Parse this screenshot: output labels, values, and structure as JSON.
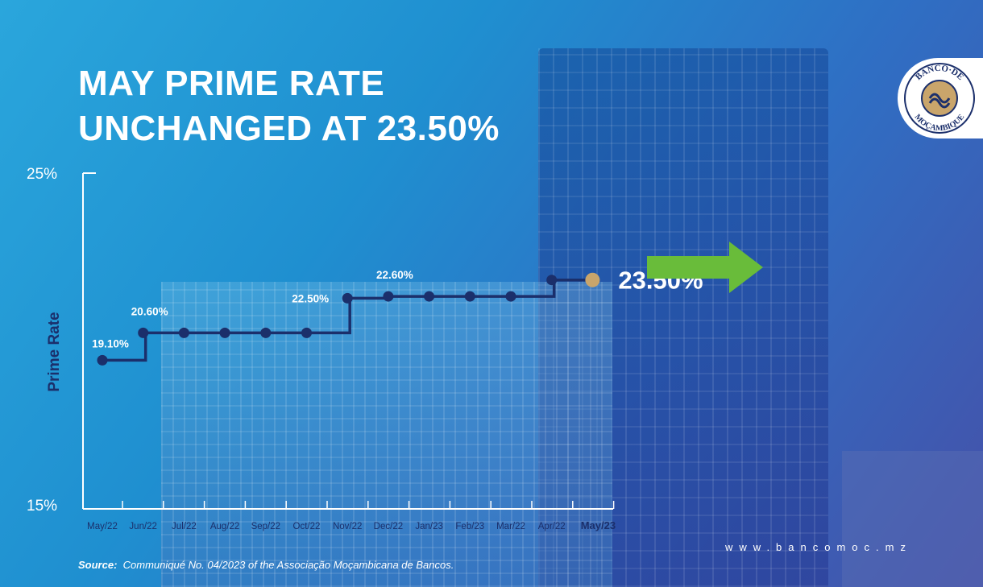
{
  "title": {
    "line1": "MAY PRIME RATE",
    "line2": "UNCHANGED AT 23.50%"
  },
  "logo": {
    "text_top": "BANCO·DE",
    "text_bottom": "MOÇAMBIQUE"
  },
  "footer": {
    "source_label": "Source:",
    "source_text": "Communiqué No. 04/2023 of the Associação Moçambicana de Bancos.",
    "url": "www.bancomoc.mz"
  },
  "colors": {
    "line": "#1b2f6b",
    "highlight_point": "#c9a56b",
    "arrow": "#69bc3a",
    "text": "#ffffff"
  },
  "chart_data": {
    "type": "line",
    "step": true,
    "ylabel": "Prime Rate",
    "ylim": [
      15,
      25
    ],
    "yticks": [
      "15%",
      "25%"
    ],
    "categories": [
      "May/22",
      "Jun/22",
      "Jul/22",
      "Aug/22",
      "Sep/22",
      "Oct/22",
      "Nov/22",
      "Dec/22",
      "Jan/23",
      "Feb/23",
      "Mar/22",
      "Apr/22",
      "May/23"
    ],
    "values": [
      19.1,
      20.6,
      20.6,
      20.6,
      20.6,
      20.6,
      22.5,
      22.6,
      22.6,
      22.6,
      22.6,
      23.5,
      23.5
    ],
    "data_labels": [
      {
        "index": 0,
        "text": "19.10%"
      },
      {
        "index": 1,
        "text": "20.60%"
      },
      {
        "index": 6,
        "text": "22.50%"
      },
      {
        "index": 7,
        "text": "22.60%"
      },
      {
        "index": 12,
        "text": "23.50%"
      }
    ],
    "highlight_index": 12,
    "highlight_category": "May/23",
    "grid": false,
    "legend": "none"
  }
}
